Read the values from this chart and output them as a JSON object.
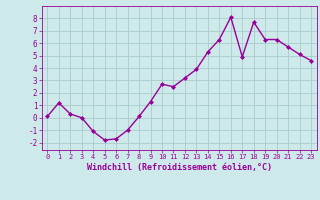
{
  "x": [
    0,
    1,
    2,
    3,
    4,
    5,
    6,
    7,
    8,
    9,
    10,
    11,
    12,
    13,
    14,
    15,
    16,
    17,
    18,
    19,
    20,
    21,
    22,
    23
  ],
  "y": [
    0.1,
    1.2,
    0.3,
    0.0,
    -1.1,
    -1.8,
    -1.7,
    -1.0,
    0.1,
    1.3,
    2.7,
    2.5,
    3.2,
    3.9,
    5.3,
    6.3,
    8.1,
    4.9,
    7.7,
    6.3,
    6.3,
    5.7,
    5.1,
    4.6
  ],
  "line_color": "#990099",
  "marker": "D",
  "markersize": 2.0,
  "linewidth": 1.0,
  "xlabel": "Windchill (Refroidissement éolien,°C)",
  "xlim": [
    -0.5,
    23.5
  ],
  "ylim": [
    -2.6,
    9.0
  ],
  "yticks": [
    -2,
    -1,
    0,
    1,
    2,
    3,
    4,
    5,
    6,
    7,
    8
  ],
  "xticks": [
    0,
    1,
    2,
    3,
    4,
    5,
    6,
    7,
    8,
    9,
    10,
    11,
    12,
    13,
    14,
    15,
    16,
    17,
    18,
    19,
    20,
    21,
    22,
    23
  ],
  "bg_color": "#cde9e9",
  "grid_color": "#aacccc",
  "tick_color": "#990099",
  "xlabel_color": "#990099",
  "spine_color": "#990099",
  "xtick_fontsize": 5.0,
  "ytick_fontsize": 5.5,
  "xlabel_fontsize": 6.0
}
